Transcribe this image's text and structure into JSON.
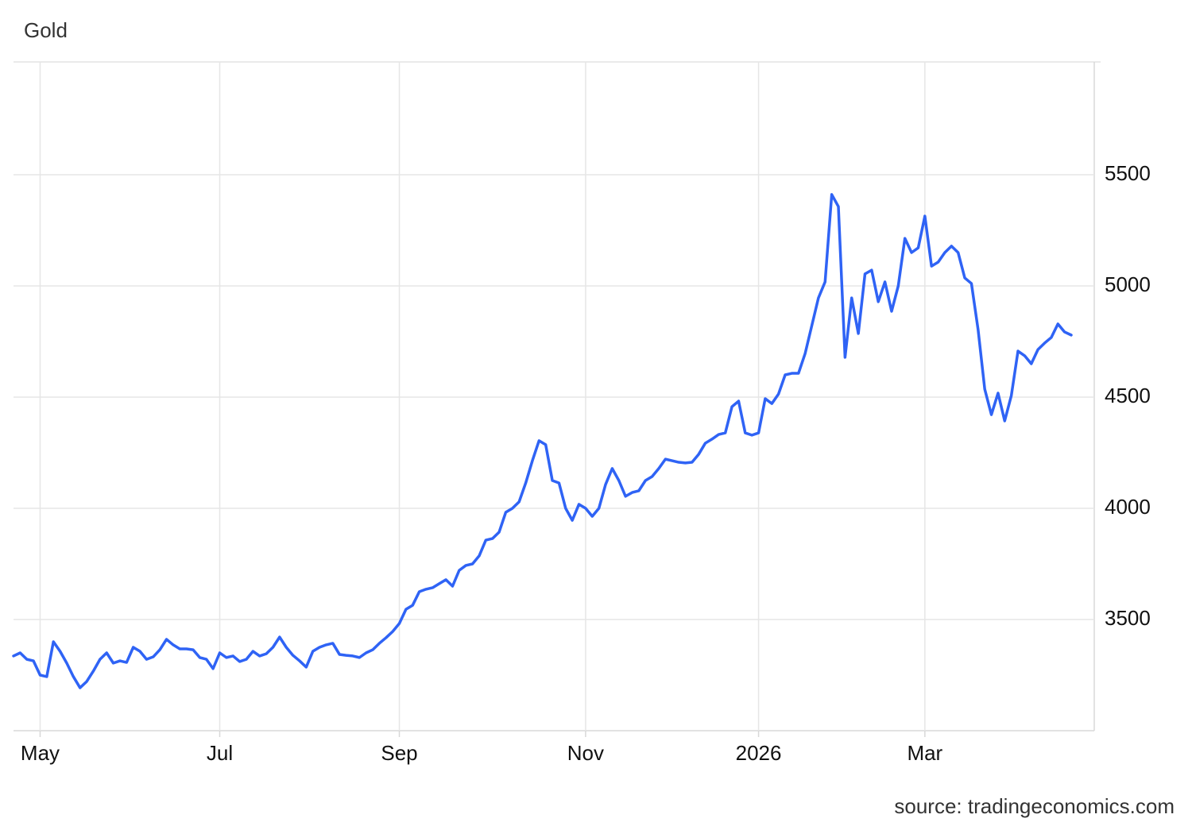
{
  "chart_data": {
    "type": "line",
    "title": "Gold",
    "source": "source: tradingeconomics.com",
    "color": "#2f63f5",
    "grid": true,
    "ylim": [
      3000,
      6000
    ],
    "yticks": [
      3500,
      4000,
      4500,
      5000,
      5500
    ],
    "categories": [
      null,
      null,
      null,
      null,
      "May",
      null,
      null,
      null,
      null,
      null,
      null,
      null,
      null,
      null,
      null,
      null,
      null,
      null,
      null,
      null,
      null,
      null,
      null,
      null,
      null,
      null,
      null,
      null,
      null,
      null,
      null,
      "Jul",
      null,
      null,
      null,
      null,
      null,
      null,
      null,
      null,
      null,
      null,
      null,
      null,
      null,
      null,
      null,
      null,
      null,
      null,
      null,
      null,
      null,
      null,
      null,
      null,
      null,
      null,
      "Sep",
      null,
      null,
      null,
      null,
      null,
      null,
      null,
      null,
      null,
      null,
      null,
      null,
      null,
      null,
      null,
      null,
      null,
      null,
      null,
      null,
      null,
      null,
      null,
      null,
      null,
      null,
      null,
      "Nov",
      null,
      null,
      null,
      null,
      null,
      null,
      null,
      null,
      null,
      null,
      null,
      null,
      null,
      null,
      null,
      null,
      null,
      null,
      null,
      null,
      null,
      null,
      null,
      null,
      null,
      "2026",
      null,
      null,
      null,
      null,
      null,
      null,
      null,
      null,
      null,
      null,
      null,
      null,
      null,
      null,
      null,
      null,
      null,
      null,
      null,
      null,
      null,
      null,
      null,
      null,
      "Mar",
      null,
      null,
      null,
      null,
      null,
      null,
      null,
      null,
      null,
      null,
      null,
      null,
      null,
      null,
      null,
      null,
      null,
      null,
      null,
      null,
      null,
      null
    ],
    "values": [
      3336,
      3350,
      3321,
      3314,
      3250,
      3243,
      3400,
      3357,
      3304,
      3243,
      3193,
      3221,
      3268,
      3321,
      3350,
      3304,
      3314,
      3307,
      3375,
      3357,
      3321,
      3332,
      3364,
      3411,
      3386,
      3368,
      3368,
      3364,
      3329,
      3321,
      3279,
      3350,
      3329,
      3336,
      3311,
      3321,
      3357,
      3336,
      3346,
      3375,
      3421,
      3375,
      3339,
      3314,
      3286,
      3357,
      3375,
      3386,
      3393,
      3343,
      3339,
      3336,
      3329,
      3350,
      3364,
      3393,
      3418,
      3446,
      3482,
      3546,
      3564,
      3625,
      3636,
      3643,
      3661,
      3679,
      3650,
      3721,
      3743,
      3750,
      3786,
      3857,
      3864,
      3893,
      3982,
      4000,
      4029,
      4114,
      4214,
      4304,
      4286,
      4125,
      4114,
      4000,
      3946,
      4018,
      4000,
      3964,
      4000,
      4107,
      4179,
      4125,
      4054,
      4071,
      4079,
      4125,
      4143,
      4179,
      4221,
      4214,
      4207,
      4204,
      4207,
      4243,
      4293,
      4311,
      4332,
      4339,
      4457,
      4482,
      4339,
      4329,
      4339,
      4493,
      4471,
      4514,
      4600,
      4607,
      4607,
      4696,
      4821,
      4946,
      5018,
      5411,
      5357,
      4679,
      4946,
      4786,
      5054,
      5071,
      4929,
      5018,
      4886,
      5000,
      5214,
      5150,
      5171,
      5314,
      5089,
      5107,
      5150,
      5179,
      5150,
      5036,
      5011,
      4804,
      4536,
      4421,
      4518,
      4393,
      4507,
      4707,
      4686,
      4650,
      4714,
      4743,
      4768,
      4829,
      4793,
      4779
    ]
  }
}
